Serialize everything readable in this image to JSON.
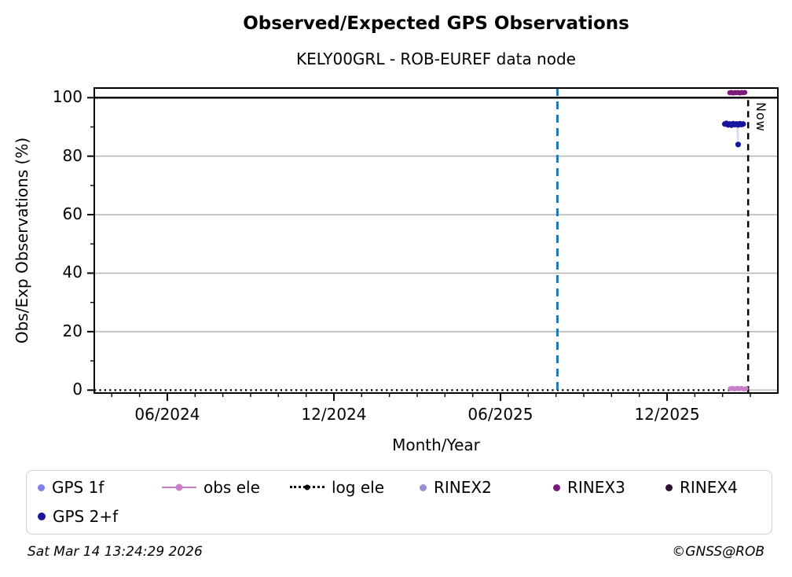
{
  "chart_data": {
    "type": "scatter",
    "title": "Observed/Expected GPS Observations",
    "subtitle": "KELY00GRL - ROB-EUREF data node",
    "xlabel": "Month/Year",
    "ylabel": "Obs/Exp Observations (%)",
    "x_unit": "months since Jan 2024 (Jan 2024 = 1)",
    "xlim_months": [
      3.37,
      27.99
    ],
    "ylim": [
      -1,
      103.3
    ],
    "grid": true,
    "grid_color": "#b3b3b3",
    "x_tick_values": [
      6,
      12,
      18,
      24
    ],
    "x_tick_labels": [
      "06/2024",
      "12/2024",
      "06/2025",
      "12/2025"
    ],
    "x_minor_tick_values": [
      4,
      5,
      7,
      8,
      9,
      10,
      11,
      13,
      14,
      15,
      16,
      17,
      19,
      20,
      21,
      22,
      23,
      25,
      26,
      27
    ],
    "y_tick_values": [
      100,
      80,
      60,
      40,
      20,
      0
    ],
    "y_tick_labels": [
      "100",
      "80",
      "60",
      "40",
      "20",
      "0"
    ],
    "y_minor_tick_values": [
      10,
      30,
      50,
      70,
      90
    ],
    "reference_line": {
      "y": 100,
      "color": "#000000"
    },
    "vertical_lines": [
      {
        "name": "reference-date-line",
        "x_month": 20.05,
        "color": "#1f77b4",
        "style": "dashed",
        "label": ""
      },
      {
        "name": "now-line",
        "x_month": 26.92,
        "color": "#000000",
        "style": "dashed",
        "label": "Now"
      }
    ],
    "series": [
      {
        "name": "GPS 1f",
        "color": "#8181e8",
        "marker_radius": 3.4,
        "points": []
      },
      {
        "name": "GPS 2+f",
        "color": "#16169e",
        "marker_radius": 3.6,
        "connector_color": "#d9d9f2",
        "points": [
          {
            "x": 26.08,
            "y": 91.0
          },
          {
            "x": 26.14,
            "y": 91.2
          },
          {
            "x": 26.2,
            "y": 90.7
          },
          {
            "x": 26.26,
            "y": 91.0
          },
          {
            "x": 26.32,
            "y": 90.6
          },
          {
            "x": 26.38,
            "y": 91.1
          },
          {
            "x": 26.44,
            "y": 90.8
          },
          {
            "x": 26.5,
            "y": 91.0
          },
          {
            "x": 26.56,
            "y": 84.0
          },
          {
            "x": 26.56,
            "y": 90.7
          },
          {
            "x": 26.62,
            "y": 91.1
          },
          {
            "x": 26.68,
            "y": 90.8
          },
          {
            "x": 26.74,
            "y": 91.0
          }
        ]
      },
      {
        "name": "obs ele",
        "color": "#c77fc7",
        "marker_radius": 3.2,
        "line": true,
        "points": [
          {
            "x": 26.28,
            "y": 0.5
          },
          {
            "x": 26.36,
            "y": 0.6
          },
          {
            "x": 26.44,
            "y": 0.4
          },
          {
            "x": 26.52,
            "y": 0.6
          },
          {
            "x": 26.6,
            "y": 0.5
          },
          {
            "x": 26.68,
            "y": 0.6
          },
          {
            "x": 26.76,
            "y": 0.4
          },
          {
            "x": 26.84,
            "y": 0.5
          }
        ]
      },
      {
        "name": "log ele",
        "color": "#000000",
        "style": "dotted",
        "baseline": {
          "y": 0,
          "x_start": 3.37,
          "x_end": 26.92
        },
        "future_segment": {
          "y": 0,
          "x_start": 26.92,
          "x_end": 27.99,
          "color": "#c8c8c8"
        },
        "points": []
      },
      {
        "name": "RINEX2",
        "color": "#9a8fce",
        "marker_radius": 3.2,
        "points": []
      },
      {
        "name": "RINEX3",
        "color": "#7a1b7a",
        "marker_radius": 3.2,
        "points": [
          {
            "x": 26.26,
            "y": 101.7
          },
          {
            "x": 26.32,
            "y": 101.8
          },
          {
            "x": 26.38,
            "y": 101.6
          },
          {
            "x": 26.44,
            "y": 101.8
          },
          {
            "x": 26.5,
            "y": 101.7
          },
          {
            "x": 26.56,
            "y": 101.8
          },
          {
            "x": 26.62,
            "y": 101.6
          },
          {
            "x": 26.68,
            "y": 101.8
          },
          {
            "x": 26.74,
            "y": 101.7
          },
          {
            "x": 26.8,
            "y": 101.8
          }
        ]
      },
      {
        "name": "RINEX4",
        "color": "#2e1133",
        "marker_radius": 3.2,
        "points": []
      }
    ]
  },
  "legend": {
    "items": [
      {
        "label": "GPS 1f",
        "color": "#8181e8",
        "marker": "dot"
      },
      {
        "label": "obs ele",
        "color": "#c77fc7",
        "marker": "line-dot"
      },
      {
        "label": "log ele",
        "color": "#000000",
        "marker": "dotted-line-dot"
      },
      {
        "label": "RINEX2",
        "color": "#9a8fce",
        "marker": "dot"
      },
      {
        "label": "RINEX3",
        "color": "#7a1b7a",
        "marker": "dot"
      },
      {
        "label": "RINEX4",
        "color": "#2e1133",
        "marker": "dot"
      },
      {
        "label": "GPS 2+f",
        "color": "#16169e",
        "marker": "dot"
      }
    ]
  },
  "footer": {
    "timestamp": "Sat Mar 14 13:24:29 2026",
    "copyright": "©GNSS@ROB"
  }
}
